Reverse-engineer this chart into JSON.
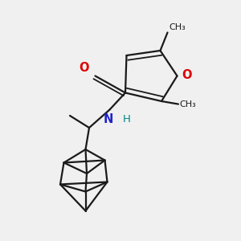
{
  "bg_color": "#f0f0f0",
  "bond_color": "#1a1a1a",
  "furan_O_color": "#dd0000",
  "N_color": "#2222cc",
  "H_color": "#008888",
  "O_carbonyl_color": "#dd0000",
  "lw": 1.6,
  "lw_thin": 1.3,
  "xlim": [
    0,
    10
  ],
  "ylim": [
    0,
    10
  ]
}
